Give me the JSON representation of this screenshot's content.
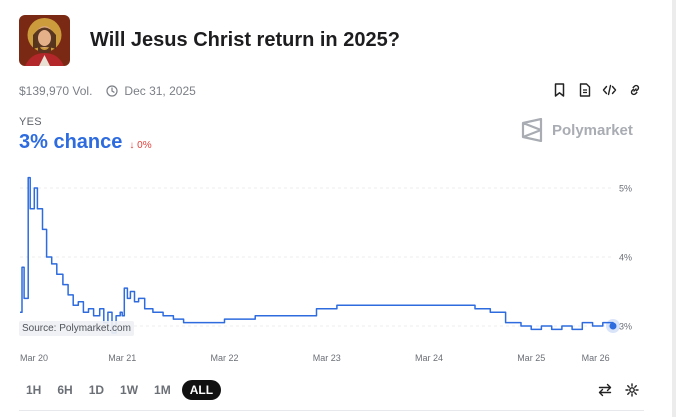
{
  "market": {
    "title": "Will Jesus Christ return in 2025?",
    "image": "jesus-portrait-image",
    "volume": "$139,970 Vol.",
    "end_date": "Dec 31, 2025"
  },
  "actions": [
    "bookmark-icon",
    "document-icon",
    "embed-code-icon",
    "link-icon"
  ],
  "outcome": {
    "label": "YES",
    "chance": "3% chance",
    "change": "↓ 0%"
  },
  "brand": {
    "name": "Polymarket",
    "icon": "polymarket-logo-icon"
  },
  "source": "Source: Polymarket.com",
  "colors": {
    "line": "#2d6bdf",
    "down": "#e0403a",
    "muted": "#a9adb3"
  },
  "chart_data": {
    "type": "line",
    "x_ticks": [
      "Mar 20",
      "Mar 21",
      "Mar 22",
      "Mar 23",
      "Mar 24",
      "Mar 25",
      "Mar 26"
    ],
    "y_ticks": [
      "5%",
      "4%",
      "3%"
    ],
    "ylim": [
      2.8,
      5.2
    ],
    "grid": true,
    "series": [
      {
        "values": [
          [
            0,
            3.2
          ],
          [
            0.02,
            3.85
          ],
          [
            0.04,
            3.4
          ],
          [
            0.08,
            5.15
          ],
          [
            0.1,
            4.7
          ],
          [
            0.14,
            5.0
          ],
          [
            0.17,
            4.7
          ],
          [
            0.22,
            4.4
          ],
          [
            0.26,
            4.0
          ],
          [
            0.31,
            3.9
          ],
          [
            0.36,
            3.75
          ],
          [
            0.42,
            3.6
          ],
          [
            0.47,
            3.45
          ],
          [
            0.52,
            3.3
          ],
          [
            0.57,
            3.35
          ],
          [
            0.62,
            3.2
          ],
          [
            0.67,
            3.25
          ],
          [
            0.72,
            3.15
          ],
          [
            0.78,
            3.25
          ],
          [
            0.82,
            3.05
          ],
          [
            0.86,
            3.2
          ],
          [
            0.9,
            2.9
          ],
          [
            0.94,
            3.15
          ],
          [
            0.98,
            3.2
          ],
          [
            1.0,
            3.15
          ],
          [
            1.02,
            3.55
          ],
          [
            1.05,
            3.4
          ],
          [
            1.08,
            3.5
          ],
          [
            1.12,
            3.35
          ],
          [
            1.16,
            3.4
          ],
          [
            1.22,
            3.25
          ],
          [
            1.3,
            3.2
          ],
          [
            1.4,
            3.15
          ],
          [
            1.5,
            3.1
          ],
          [
            1.6,
            3.05
          ],
          [
            1.7,
            3.05
          ],
          [
            1.8,
            3.05
          ],
          [
            1.9,
            3.05
          ],
          [
            2.0,
            3.1
          ],
          [
            2.1,
            3.1
          ],
          [
            2.2,
            3.1
          ],
          [
            2.3,
            3.15
          ],
          [
            2.5,
            3.15
          ],
          [
            2.7,
            3.15
          ],
          [
            2.9,
            3.25
          ],
          [
            3.1,
            3.3
          ],
          [
            3.3,
            3.3
          ],
          [
            3.5,
            3.3
          ],
          [
            3.7,
            3.3
          ],
          [
            3.9,
            3.3
          ],
          [
            4.1,
            3.3
          ],
          [
            4.3,
            3.3
          ],
          [
            4.45,
            3.25
          ],
          [
            4.6,
            3.2
          ],
          [
            4.75,
            3.05
          ],
          [
            4.9,
            3.0
          ],
          [
            5.0,
            2.95
          ],
          [
            5.1,
            3.0
          ],
          [
            5.2,
            2.95
          ],
          [
            5.3,
            3.0
          ],
          [
            5.4,
            2.95
          ],
          [
            5.5,
            3.05
          ],
          [
            5.6,
            3.0
          ],
          [
            5.7,
            3.05
          ],
          [
            5.8,
            3.0
          ]
        ]
      }
    ]
  },
  "ranges": {
    "options": [
      "1H",
      "6H",
      "1D",
      "1W",
      "1M",
      "ALL"
    ],
    "active": "ALL"
  },
  "footer_icons": [
    "swap-arrows-icon",
    "settings-gear-icon"
  ]
}
